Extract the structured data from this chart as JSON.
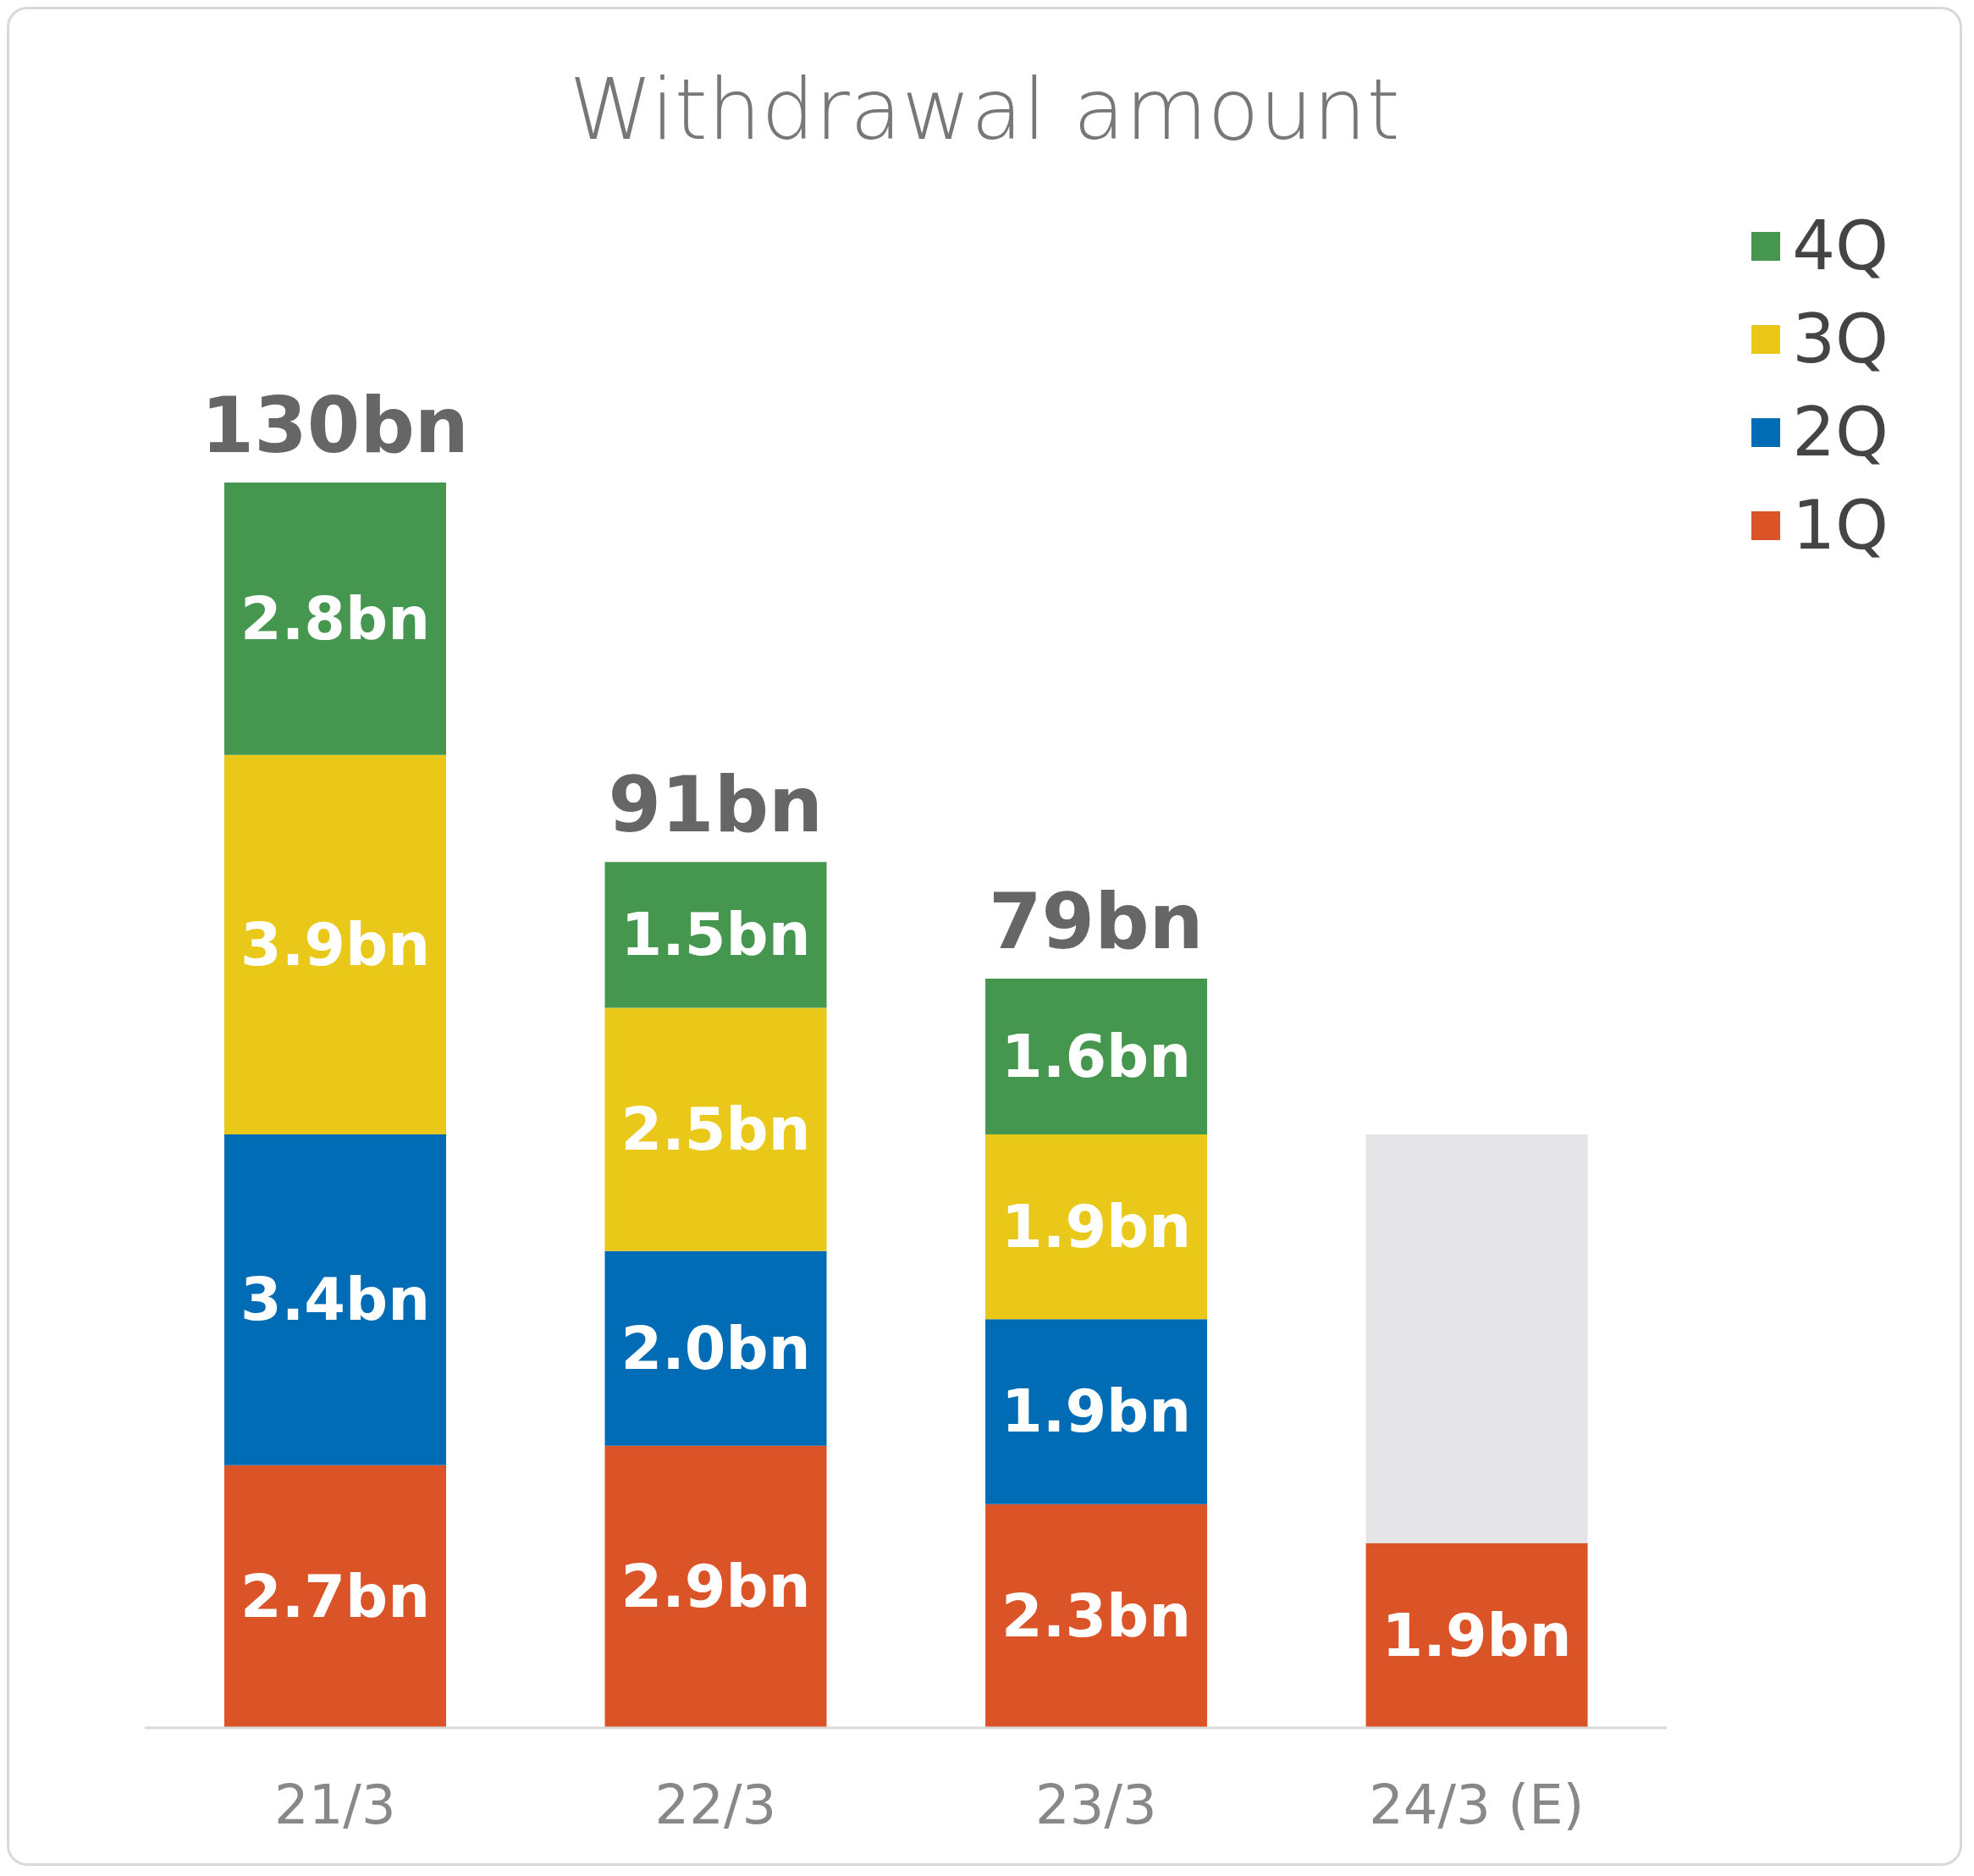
{
  "chart_data": {
    "type": "bar",
    "title": "Withdrawal amount",
    "stacked": true,
    "data_labels": false,
    "legend": "top right",
    "categories": [
      "21/3",
      "22/3",
      "23/3",
      "24/3 (E)"
    ],
    "series": [
      {
        "name": "1Q",
        "color": "#db5427",
        "values": [
          2.7,
          2.9,
          2.3,
          1.9
        ],
        "value_labels": [
          "2.7bn",
          "2.9bn",
          "2.3bn",
          "1.9bn"
        ]
      },
      {
        "name": "2Q",
        "color": "#006cb6",
        "values": [
          3.4,
          2.0,
          1.9,
          null
        ],
        "value_labels": [
          "3.4bn",
          "2.0bn",
          "1.9bn",
          null
        ]
      },
      {
        "name": "3Q",
        "color": "#e9c81a",
        "values": [
          3.9,
          2.5,
          1.9,
          null
        ],
        "value_labels": [
          "3.9bn",
          "2.5bn",
          "1.9bn",
          null
        ]
      },
      {
        "name": "4Q",
        "color": "#45964f",
        "values": [
          2.8,
          1.5,
          1.6,
          null
        ],
        "value_labels": [
          "2.8bn",
          "1.5bn",
          "1.6bn",
          null
        ]
      },
      {
        "color": "#e5e5e7",
        "values": [
          null,
          null,
          null,
          4.2
        ]
      }
    ],
    "annotations": [
      {
        "text": "130bn",
        "x": "21/3",
        "y": 12.8
      },
      {
        "text": "91bn",
        "x": "22/3",
        "y": 8.9
      },
      {
        "text": "79bn",
        "x": "23/3",
        "y": 7.7
      }
    ]
  }
}
